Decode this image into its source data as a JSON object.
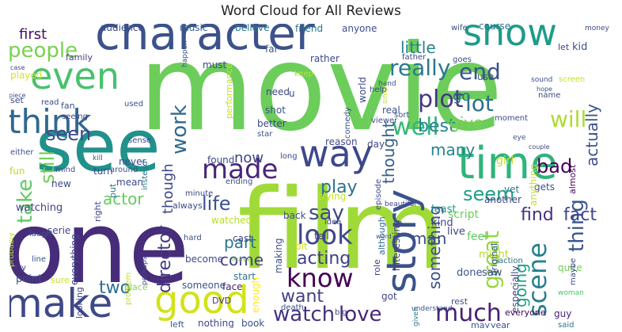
{
  "chart_data": {
    "type": "wordcloud",
    "title": "Word Cloud for All Reviews",
    "words": [
      {
        "text": "movie",
        "weight": 100,
        "color": "#6ccd5a"
      },
      {
        "text": "film",
        "weight": 95,
        "color": "#a0da39"
      },
      {
        "text": "one",
        "weight": 84,
        "color": "#472c7a"
      },
      {
        "text": "see",
        "weight": 60,
        "color": "#21918c"
      },
      {
        "text": "character",
        "weight": 52,
        "color": "#3b528b"
      },
      {
        "text": "show",
        "weight": 41,
        "color": "#1e9b8a"
      },
      {
        "text": "time",
        "weight": 40,
        "color": "#2fb47c"
      },
      {
        "text": "make",
        "weight": 38,
        "color": "#3e4989"
      },
      {
        "text": "even",
        "weight": 36,
        "color": "#4ac16d"
      },
      {
        "text": "think",
        "weight": 34,
        "color": "#31688e"
      },
      {
        "text": "good",
        "weight": 34,
        "color": "#d2e21b"
      },
      {
        "text": "story",
        "weight": 33,
        "color": "#3b528b"
      },
      {
        "text": "way",
        "weight": 31,
        "color": "#3e4989"
      },
      {
        "text": "made",
        "weight": 27,
        "color": "#482677"
      },
      {
        "text": "really",
        "weight": 24,
        "color": "#2a788e"
      },
      {
        "text": "people",
        "weight": 24,
        "color": "#7ad151"
      },
      {
        "text": "look",
        "weight": 23,
        "color": "#3f4788"
      },
      {
        "text": "know",
        "weight": 22,
        "color": "#440154"
      },
      {
        "text": "end",
        "weight": 22,
        "color": "#3b528b"
      },
      {
        "text": "well",
        "weight": 22,
        "color": "#35b779"
      },
      {
        "text": "scene",
        "weight": 21,
        "color": "#27808e"
      },
      {
        "text": "much",
        "weight": 21,
        "color": "#482173"
      },
      {
        "text": "plot",
        "weight": 21,
        "color": "#453781"
      },
      {
        "text": "great",
        "weight": 20,
        "color": "#95d840"
      },
      {
        "text": "lot",
        "weight": 20,
        "color": "#2d708e"
      },
      {
        "text": "will",
        "weight": 19,
        "color": "#addc30"
      },
      {
        "text": "work",
        "weight": 19,
        "color": "#31688e"
      },
      {
        "text": "watch",
        "weight": 19,
        "color": "#46337e"
      },
      {
        "text": "love",
        "weight": 18,
        "color": "#482878"
      },
      {
        "text": "seen",
        "weight": 18,
        "color": "#3e4a89"
      },
      {
        "text": "thing",
        "weight": 18,
        "color": "#39568c"
      },
      {
        "text": "take",
        "weight": 17,
        "color": "#5ec962"
      },
      {
        "text": "life",
        "weight": 17,
        "color": "#3b528b"
      },
      {
        "text": "bad",
        "weight": 17,
        "color": "#440154"
      },
      {
        "text": "say",
        "weight": 17,
        "color": "#3e4989"
      },
      {
        "text": "best",
        "weight": 16,
        "color": "#26828e"
      },
      {
        "text": "seem",
        "weight": 16,
        "color": "#1f9e89"
      },
      {
        "text": "still",
        "weight": 16,
        "color": "#6ece58"
      },
      {
        "text": "play",
        "weight": 15,
        "color": "#2c728e"
      },
      {
        "text": "acting",
        "weight": 15,
        "color": "#433e85"
      },
      {
        "text": "director",
        "weight": 15,
        "color": "#443983"
      },
      {
        "text": "want",
        "weight": 15,
        "color": "#424086"
      },
      {
        "text": "find",
        "weight": 15,
        "color": "#46307e"
      },
      {
        "text": "fact",
        "weight": 15,
        "color": "#3f4788"
      },
      {
        "text": "two",
        "weight": 15,
        "color": "#2e6f8e"
      },
      {
        "text": "come",
        "weight": 15,
        "color": "#433d84"
      },
      {
        "text": "part",
        "weight": 15,
        "color": "#2a768e"
      },
      {
        "text": "thought",
        "weight": 14,
        "color": "#35608d"
      },
      {
        "text": "something",
        "weight": 14,
        "color": "#3e4c8a"
      },
      {
        "text": "actor",
        "weight": 14,
        "color": "#65cb5e"
      },
      {
        "text": "give",
        "weight": 14,
        "color": "#7ad151"
      },
      {
        "text": "man",
        "weight": 14,
        "color": "#3d4d8a"
      },
      {
        "text": "many",
        "weight": 14,
        "color": "#25848e"
      },
      {
        "text": "going",
        "weight": 14,
        "color": "#1fa287"
      },
      {
        "text": "first",
        "weight": 13,
        "color": "#471164"
      },
      {
        "text": "little",
        "weight": 13,
        "color": "#27808e"
      },
      {
        "text": "now",
        "weight": 13,
        "color": "#404688"
      },
      {
        "text": "actually",
        "weight": 13,
        "color": "#3b528b"
      },
      {
        "text": "go",
        "weight": 12,
        "color": "#2d708e"
      },
      {
        "text": "though",
        "weight": 12,
        "color": "#3f4788"
      },
      {
        "text": "music",
        "weight": 10,
        "color": "#33638d"
      },
      {
        "text": "course",
        "weight": 10,
        "color": "#2b748e"
      },
      {
        "text": "believe",
        "weight": 10,
        "color": "#297b8e"
      },
      {
        "text": "friend",
        "weight": 10,
        "color": "#2a778e"
      },
      {
        "text": "anyone",
        "weight": 10,
        "color": "#3d4e8a"
      },
      {
        "text": "audience",
        "weight": 10,
        "color": "#3f4889"
      },
      {
        "text": "kid",
        "weight": 10,
        "color": "#3a548c"
      },
      {
        "text": "let",
        "weight": 9,
        "color": "#433e85"
      },
      {
        "text": "wife",
        "weight": 9,
        "color": "#3c508b"
      },
      {
        "text": "family",
        "weight": 9,
        "color": "#424186"
      },
      {
        "text": "played",
        "weight": 9,
        "color": "#d8e219"
      },
      {
        "text": "set",
        "weight": 9,
        "color": "#414487"
      },
      {
        "text": "fan",
        "weight": 9,
        "color": "#3b528b"
      },
      {
        "text": "script",
        "weight": 10,
        "color": "#6ccd5a"
      },
      {
        "text": "feel",
        "weight": 10,
        "color": "#5ec962"
      },
      {
        "text": "might",
        "weight": 10,
        "color": "#b5de2b"
      },
      {
        "text": "live",
        "weight": 10,
        "color": "#3f4788"
      },
      {
        "text": "kind",
        "weight": 10,
        "color": "#404588"
      },
      {
        "text": "least",
        "weight": 10,
        "color": "#1f988b"
      },
      {
        "text": "gets",
        "weight": 9,
        "color": "#3d4d8a"
      },
      {
        "text": "almost",
        "weight": 9,
        "color": "#440154"
      },
      {
        "text": "another",
        "weight": 9,
        "color": "#414487"
      },
      {
        "text": "yet",
        "weight": 9,
        "color": "#297a8e"
      },
      {
        "text": "anything",
        "weight": 9,
        "color": "#c8e020"
      },
      {
        "text": "action",
        "weight": 9,
        "color": "#2d708e"
      },
      {
        "text": "done",
        "weight": 10,
        "color": "#39568c"
      },
      {
        "text": "saw",
        "weight": 10,
        "color": "#3f4889"
      },
      {
        "text": "episode",
        "weight": 9,
        "color": "#3e4989"
      },
      {
        "text": "although",
        "weight": 9,
        "color": "#31688e"
      },
      {
        "text": "interesting",
        "weight": 9,
        "color": "#433e85"
      },
      {
        "text": "original",
        "weight": 9,
        "color": "#365d8d"
      },
      {
        "text": "quite",
        "weight": 9,
        "color": "#6ece58"
      },
      {
        "text": "woman",
        "weight": 8,
        "color": "#4ec36b"
      },
      {
        "text": "maybe",
        "weight": 8,
        "color": "#3f4788"
      },
      {
        "text": "guy",
        "weight": 9,
        "color": "#482475"
      },
      {
        "text": "said",
        "weight": 8,
        "color": "#2c738e"
      },
      {
        "text": "everyone",
        "weight": 8,
        "color": "#440154"
      },
      {
        "text": "year",
        "weight": 8,
        "color": "#3b528b"
      },
      {
        "text": "may",
        "weight": 8,
        "color": "#38598c"
      },
      {
        "text": "rest",
        "weight": 8,
        "color": "#3b528b"
      },
      {
        "text": "especially",
        "weight": 9,
        "color": "#404688"
      },
      {
        "text": "understand",
        "weight": 8,
        "color": "#39558c"
      },
      {
        "text": "given",
        "weight": 8,
        "color": "#2a788e"
      },
      {
        "text": "got",
        "weight": 9,
        "color": "#3f4788"
      },
      {
        "text": "role",
        "weight": 9,
        "color": "#443b84"
      },
      {
        "text": "making",
        "weight": 9,
        "color": "#3d4e8a"
      },
      {
        "text": "death",
        "weight": 8,
        "color": "#3c4f8a"
      },
      {
        "text": "big",
        "weight": 8,
        "color": "#3f4788"
      },
      {
        "text": "bit",
        "weight": 9,
        "color": "#c5e021"
      },
      {
        "text": "tell",
        "weight": 9,
        "color": "#414287"
      },
      {
        "text": "back",
        "weight": 9,
        "color": "#3c508b"
      },
      {
        "text": "idea",
        "weight": 8,
        "color": "#3e4989"
      },
      {
        "text": "start",
        "weight": 9,
        "color": "#2c728e"
      },
      {
        "text": "cast",
        "weight": 9,
        "color": "#3f4788"
      },
      {
        "text": "face",
        "weight": 9,
        "color": "#482173"
      },
      {
        "text": "leave",
        "weight": 7,
        "color": "#75d054"
      },
      {
        "text": "become",
        "weight": 9,
        "color": "#3e4989"
      },
      {
        "text": "someone",
        "weight": 9,
        "color": "#3b528b"
      },
      {
        "text": "enough",
        "weight": 9,
        "color": "#fde725"
      },
      {
        "text": "nothing",
        "weight": 9,
        "color": "#3f4788"
      },
      {
        "text": "book",
        "weight": 9,
        "color": "#3a538b"
      },
      {
        "text": "left",
        "weight": 8,
        "color": "#33638d"
      },
      {
        "text": "DVD",
        "weight": 8,
        "color": "#46307e"
      },
      {
        "text": "place",
        "weight": 8,
        "color": "#86d549"
      },
      {
        "text": "problem",
        "weight": 7,
        "color": "#c2df23"
      },
      {
        "text": "perhaps",
        "weight": 7,
        "color": "#3e4989"
      },
      {
        "text": "hard",
        "weight": 8,
        "color": "#3b528b"
      },
      {
        "text": "watched",
        "weight": 9,
        "color": "#b5de2b"
      },
      {
        "text": "always",
        "weight": 9,
        "color": "#3e4989"
      },
      {
        "text": "minute",
        "weight": 8,
        "color": "#3f4788"
      },
      {
        "text": "mean",
        "weight": 9,
        "color": "#3e4989"
      },
      {
        "text": "put",
        "weight": 9,
        "color": "#2a788e"
      },
      {
        "text": "right",
        "weight": 9,
        "color": "#3f4788"
      },
      {
        "text": "new",
        "weight": 9,
        "color": "#3f4788"
      },
      {
        "text": "watching",
        "weight": 9,
        "color": "#414487"
      },
      {
        "text": "serie",
        "weight": 9,
        "color": "#404588"
      },
      {
        "text": "line",
        "weight": 8,
        "color": "#3b528b"
      },
      {
        "text": "laugh",
        "weight": 8,
        "color": "#3a548c"
      },
      {
        "text": "point",
        "weight": 9,
        "color": "#3c4f8a"
      },
      {
        "text": "try",
        "weight": 8,
        "color": "#443b84"
      },
      {
        "text": "sure",
        "weight": 8,
        "color": "#c8e020"
      },
      {
        "text": "looking",
        "weight": 8,
        "color": "#3f4788"
      },
      {
        "text": "everything",
        "weight": 9,
        "color": "#3e4989"
      },
      {
        "text": "probably",
        "weight": 8,
        "color": "#b5de2b"
      },
      {
        "text": "either",
        "weight": 8,
        "color": "#3b528b"
      },
      {
        "text": "fun",
        "weight": 9,
        "color": "#b2dd2d"
      },
      {
        "text": "mind",
        "weight": 8,
        "color": "#3b528b"
      },
      {
        "text": "turn",
        "weight": 9,
        "color": "#3f4788"
      },
      {
        "text": "around",
        "weight": 8,
        "color": "#3a548c"
      },
      {
        "text": "never",
        "weight": 9,
        "color": "#3e4989"
      },
      {
        "text": "kill",
        "weight": 7,
        "color": "#3b528b"
      },
      {
        "text": "sense",
        "weight": 7,
        "color": "#3e4989"
      },
      {
        "text": "used",
        "weight": 8,
        "color": "#3b528b"
      },
      {
        "text": "seeing",
        "weight": 8,
        "color": "#3e4989"
      },
      {
        "text": "read",
        "weight": 8,
        "color": "#3f4788"
      },
      {
        "text": "piece",
        "weight": 7,
        "color": "#3b528b"
      },
      {
        "text": "case",
        "weight": 7,
        "color": "#3e4989"
      },
      {
        "text": "happen",
        "weight": 7,
        "color": "#3b528b"
      },
      {
        "text": "must",
        "weight": 9,
        "color": "#3f4788"
      },
      {
        "text": "far",
        "weight": 9,
        "color": "#3b528b"
      },
      {
        "text": "rather",
        "weight": 9,
        "color": "#3e4989"
      },
      {
        "text": "keep",
        "weight": 8,
        "color": "#c5e021"
      },
      {
        "text": "need",
        "weight": 9,
        "color": "#3f4788"
      },
      {
        "text": "u",
        "weight": 9,
        "color": "#3e4989"
      },
      {
        "text": "shot",
        "weight": 9,
        "color": "#3b528b"
      },
      {
        "text": "better",
        "weight": 9,
        "color": "#3f4788"
      },
      {
        "text": "star",
        "weight": 8,
        "color": "#3b528b"
      },
      {
        "text": "performance",
        "weight": 9,
        "color": "#c8e020"
      },
      {
        "text": "long",
        "weight": 8,
        "color": "#3e4989"
      },
      {
        "text": "ending",
        "weight": 8,
        "color": "#3b528b"
      },
      {
        "text": "instead",
        "weight": 8,
        "color": "#2a788e"
      },
      {
        "text": "found",
        "weight": 9,
        "color": "#3f4788"
      },
      {
        "text": "reason",
        "weight": 9,
        "color": "#3e4989"
      },
      {
        "text": "comedy",
        "weight": 8,
        "color": "#3b528b"
      },
      {
        "text": "day",
        "weight": 9,
        "color": "#3f4788"
      },
      {
        "text": "trying",
        "weight": 9,
        "color": "#c8e020"
      },
      {
        "text": "world",
        "weight": 9,
        "color": "#3e4989"
      },
      {
        "text": "real",
        "weight": 9,
        "color": "#3b528b"
      },
      {
        "text": "viewer",
        "weight": 8,
        "color": "#3f4788"
      },
      {
        "text": "sort",
        "weight": 8,
        "color": "#3b528b"
      },
      {
        "text": "simply",
        "weight": 7,
        "color": "#c5e021"
      },
      {
        "text": "help",
        "weight": 8,
        "color": "#3e4989"
      },
      {
        "text": "hand",
        "weight": 7,
        "color": "#3b528b"
      },
      {
        "text": "father",
        "weight": 8,
        "color": "#3f4788"
      },
      {
        "text": "goes",
        "weight": 8,
        "color": "#3e4989"
      },
      {
        "text": "use",
        "weight": 9,
        "color": "#3b528b"
      },
      {
        "text": "beautiful",
        "weight": 7,
        "color": "#3f4788"
      },
      {
        "text": "word",
        "weight": 7,
        "color": "#3b528b"
      },
      {
        "text": "girl",
        "weight": 9,
        "color": "#c5e021"
      },
      {
        "text": "moment",
        "weight": 8,
        "color": "#3e4989"
      },
      {
        "text": "hope",
        "weight": 7,
        "color": "#3b528b"
      },
      {
        "text": "name",
        "weight": 8,
        "color": "#3f4788"
      },
      {
        "text": "screen",
        "weight": 8,
        "color": "#c8e020"
      },
      {
        "text": "sound",
        "weight": 7,
        "color": "#3b528b"
      },
      {
        "text": "money",
        "weight": 8,
        "color": "#3e4989"
      },
      {
        "text": "eye",
        "weight": 7,
        "color": "#3b528b"
      },
      {
        "text": "couple",
        "weight": 7,
        "color": "#3f4788"
      }
    ]
  }
}
